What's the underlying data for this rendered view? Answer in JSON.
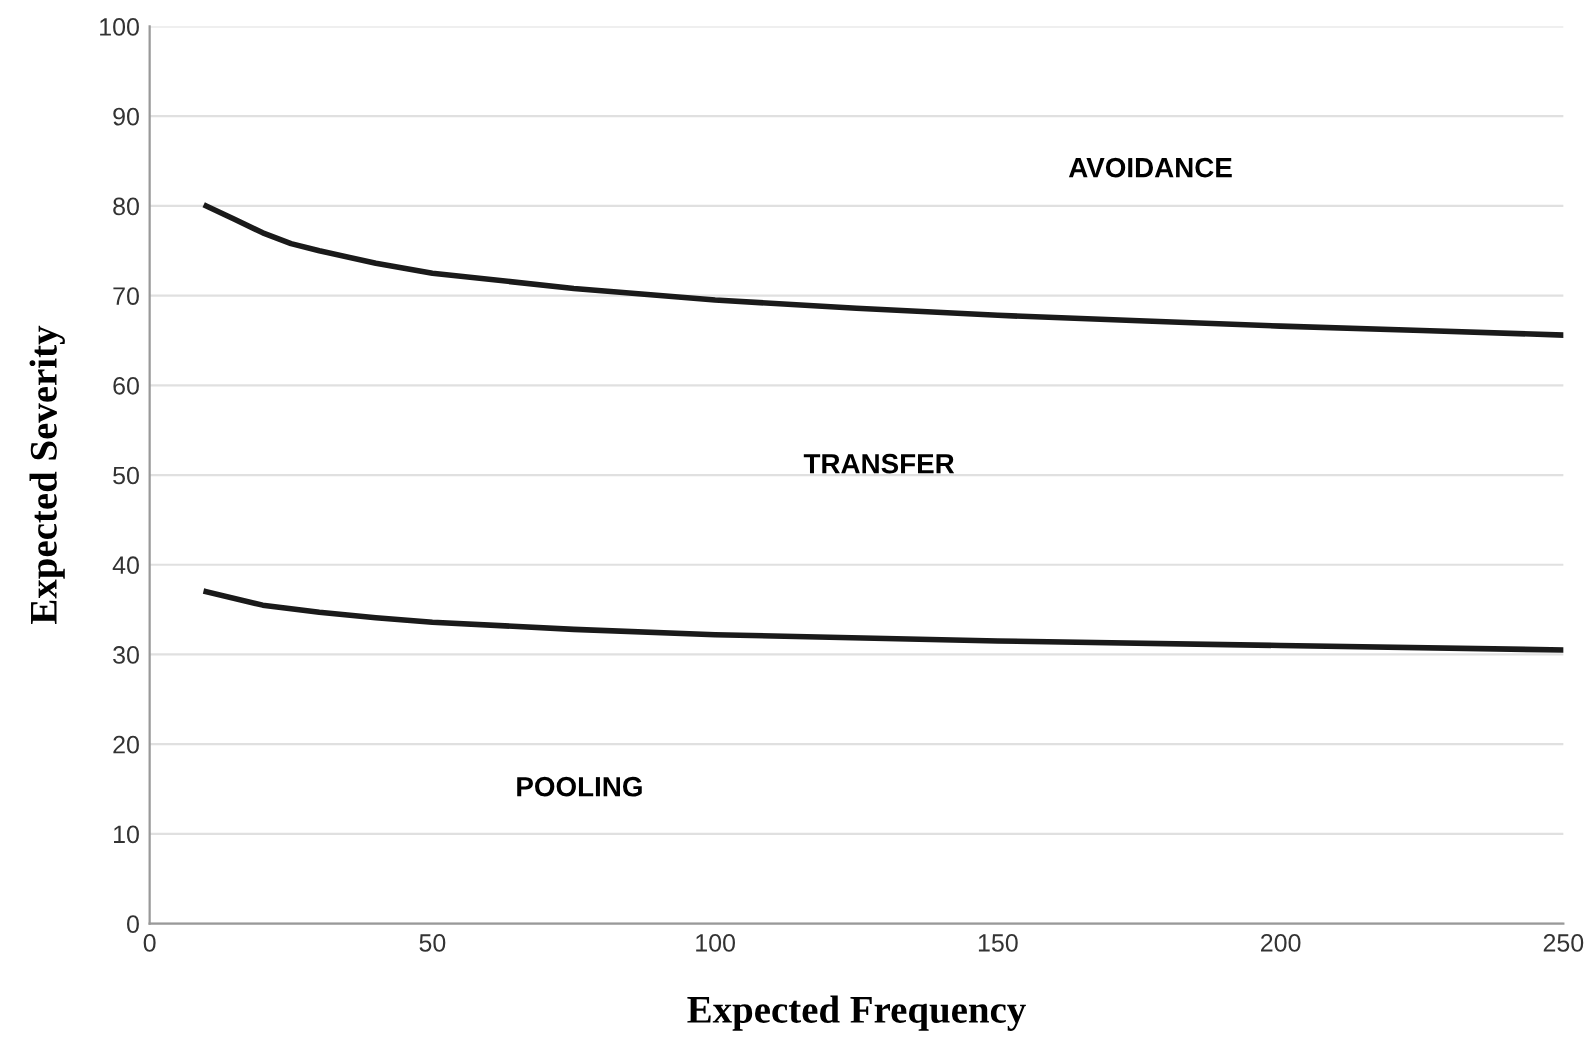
{
  "chart_data": {
    "type": "line",
    "xlabel": "Expected Frequency",
    "ylabel": "Expected Severity",
    "xlim": [
      0,
      250
    ],
    "xticks": [
      0,
      50,
      100,
      150,
      200,
      250
    ],
    "ylim": [
      0,
      100
    ],
    "yticks": [
      0,
      10,
      20,
      30,
      40,
      50,
      60,
      70,
      80,
      90,
      100
    ],
    "grid": "y",
    "marker": "none",
    "line_style": "solid",
    "series": [
      {
        "color": "#1a1a1a",
        "x": [
          10,
          15,
          20,
          25,
          30,
          40,
          50,
          75,
          100,
          125,
          150,
          175,
          200,
          225,
          250
        ],
        "values": [
          80,
          78.5,
          77,
          75.8,
          75,
          73.6,
          72.5,
          70.8,
          69.5,
          68.6,
          67.8,
          67.2,
          66.6,
          66.1,
          65.6
        ]
      },
      {
        "color": "#1a1a1a",
        "x": [
          10,
          20,
          30,
          40,
          50,
          75,
          100,
          150,
          200,
          250
        ],
        "values": [
          37,
          35.5,
          34.7,
          34.1,
          33.6,
          32.8,
          32.2,
          31.5,
          31,
          30.5
        ]
      }
    ],
    "annotations": [
      "AVOIDANCE",
      "TRANSFER",
      "POOLING"
    ]
  }
}
